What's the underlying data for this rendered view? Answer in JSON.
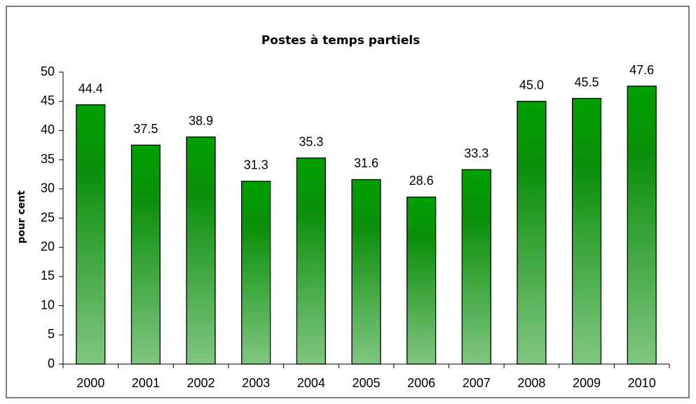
{
  "chart_data": {
    "type": "bar",
    "title": "Postes à temps partiels",
    "ylabel": "pour cent",
    "categories": [
      "2000",
      "2001",
      "2002",
      "2003",
      "2004",
      "2005",
      "2006",
      "2007",
      "2008",
      "2009",
      "2010"
    ],
    "values": [
      44.4,
      37.5,
      38.9,
      31.3,
      35.3,
      31.6,
      28.6,
      33.3,
      45.0,
      45.5,
      47.6
    ],
    "value_labels": [
      "44.4",
      "37.5",
      "38.9",
      "31.3",
      "35.3",
      "31.6",
      "28.6",
      "33.3",
      "45.0",
      "45.5",
      "47.6"
    ],
    "color": "#008a00",
    "ylim": [
      0,
      50
    ],
    "yticks": [
      0,
      5,
      10,
      15,
      20,
      25,
      30,
      35,
      40,
      45,
      50
    ],
    "grid": false
  }
}
